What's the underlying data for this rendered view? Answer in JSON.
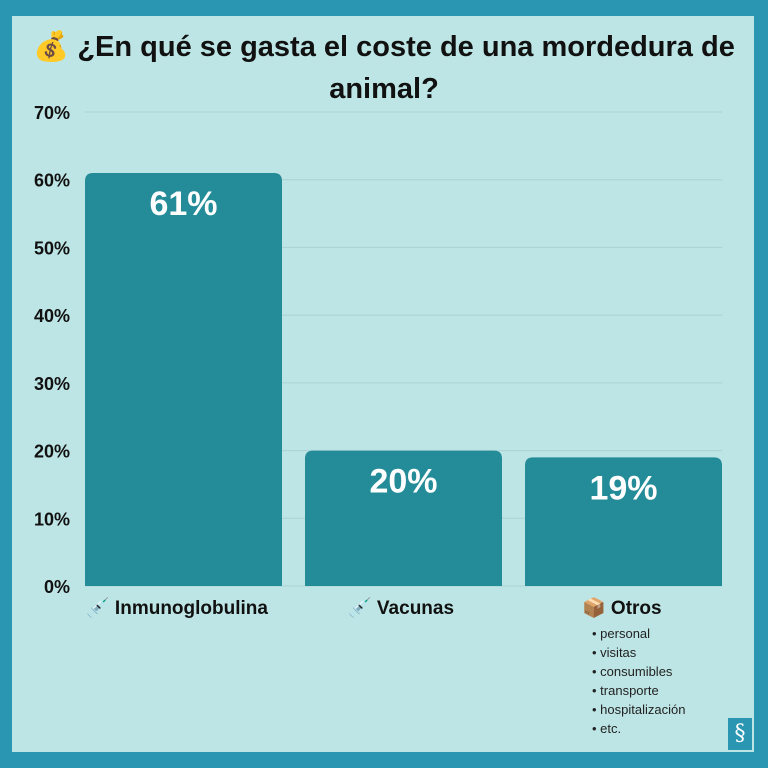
{
  "title_icon": "money-bag-icon",
  "title": "💰 ¿En qué se gasta el coste de una mordedura de animal?",
  "chart_data": {
    "type": "bar",
    "title": "¿En qué se gasta el coste de una mordedura de animal?",
    "categories": [
      "💉 Inmunoglobulina",
      "💉 Vacunas",
      "📦 Otros"
    ],
    "values": [
      61,
      20,
      19
    ],
    "data_labels": [
      "61%",
      "20%",
      "19%"
    ],
    "ylim": [
      0,
      70
    ],
    "yticks": [
      0,
      10,
      20,
      30,
      40,
      50,
      60,
      70
    ],
    "ytick_labels": [
      "0%",
      "10%",
      "20%",
      "30%",
      "40%",
      "50%",
      "60%",
      "70%"
    ],
    "grid": true,
    "bar_color": "#248c98",
    "xlabel": "",
    "ylabel": ""
  },
  "otros_items": [
    "personal",
    "visitas",
    "consumibles",
    "transporte",
    "hospitalización",
    "etc."
  ],
  "colors": {
    "border": "#2a96b2",
    "background": "#bee5e5",
    "bar": "#248c98"
  }
}
